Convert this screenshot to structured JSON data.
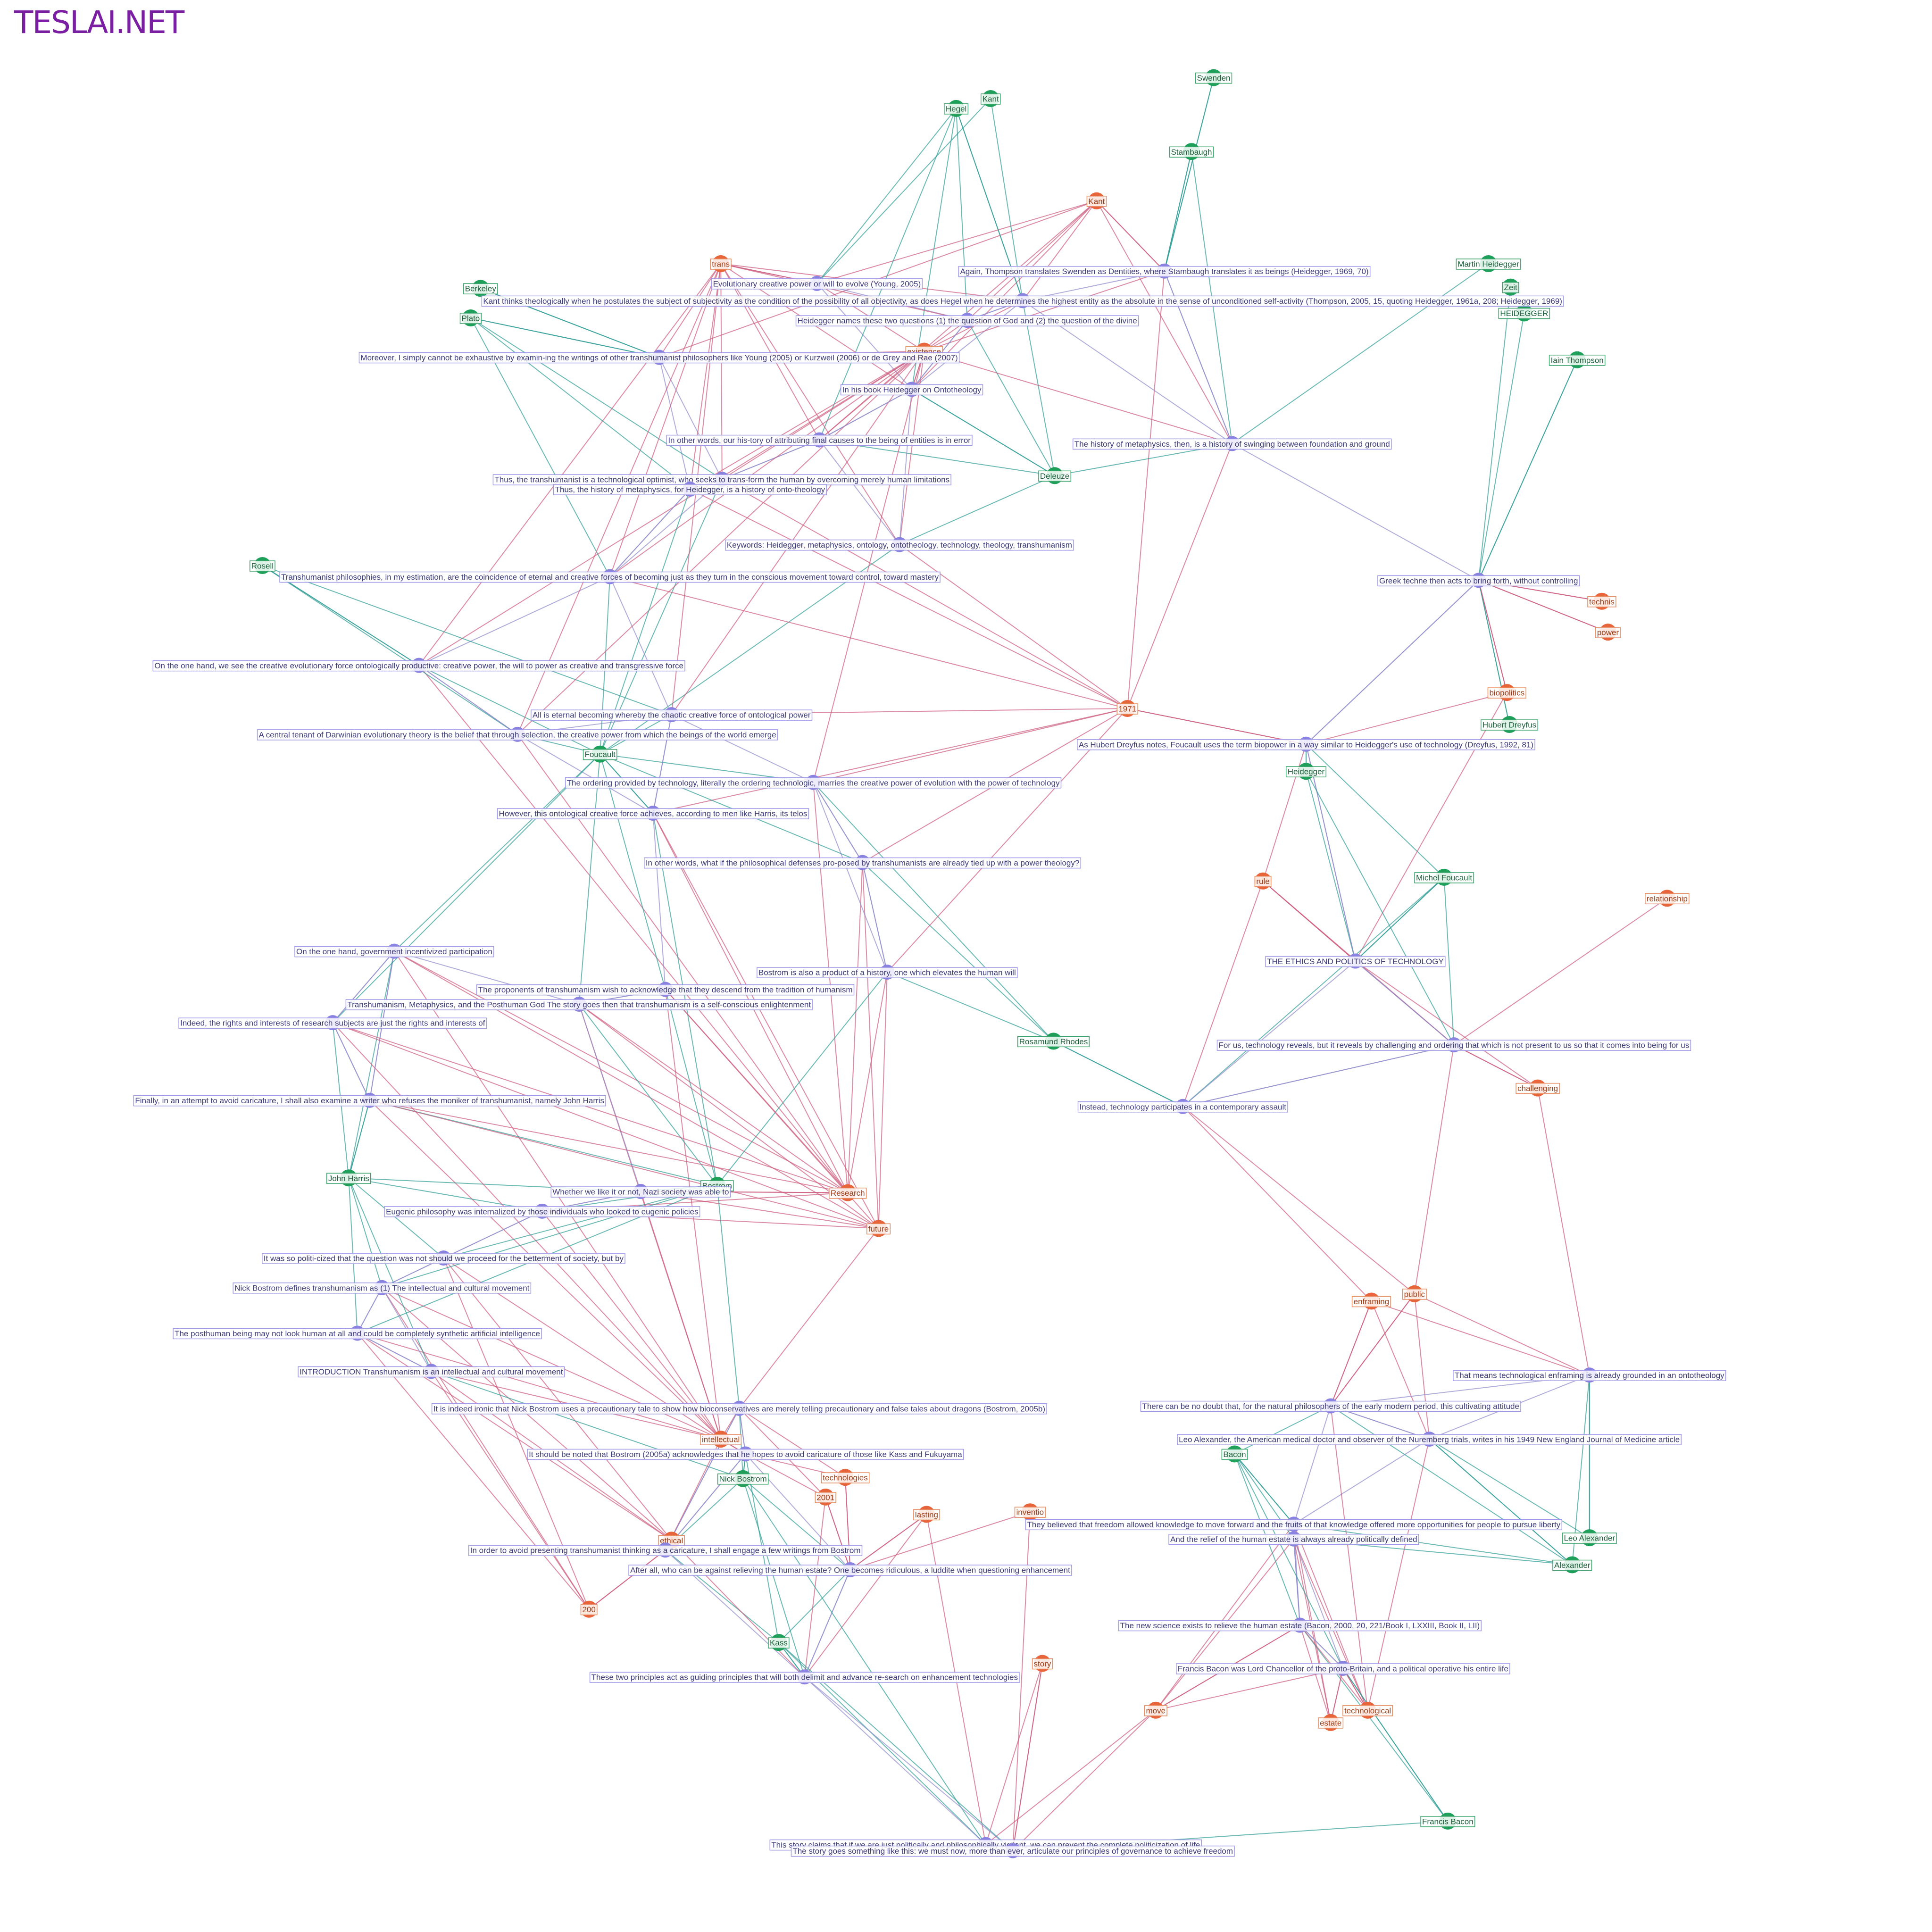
{
  "header": {
    "brand": "TESLAI.NET"
  },
  "nodes": [
    {
      "label": "Swenden",
      "kind": "person"
    },
    {
      "label": "Hegel",
      "kind": "person"
    },
    {
      "label": "Kant",
      "kind": "person"
    },
    {
      "label": "Stambaugh",
      "kind": "person"
    },
    {
      "label": "Berkeley",
      "kind": "person"
    },
    {
      "label": "Plato",
      "kind": "person"
    },
    {
      "label": "Martin Heidegger",
      "kind": "person"
    },
    {
      "label": "Zeit",
      "kind": "person"
    },
    {
      "label": "HEIDEGGER",
      "kind": "person"
    },
    {
      "label": "Iain Thompson",
      "kind": "person"
    },
    {
      "label": "Rosell",
      "kind": "person"
    },
    {
      "label": "Hubert Dreyfus",
      "kind": "person"
    },
    {
      "label": "Foucault",
      "kind": "person"
    },
    {
      "label": "Michel Foucault",
      "kind": "person"
    },
    {
      "label": "Rosamund Rhodes",
      "kind": "person"
    },
    {
      "label": "John Harris",
      "kind": "person"
    },
    {
      "label": "Bostrom",
      "kind": "person"
    },
    {
      "label": "Nick Bostrom",
      "kind": "person"
    },
    {
      "label": "Bacon",
      "kind": "person"
    },
    {
      "label": "Leo Alexander",
      "kind": "person"
    },
    {
      "label": "Alexander",
      "kind": "person"
    },
    {
      "label": "Kass",
      "kind": "person"
    },
    {
      "label": "Francis Bacon",
      "kind": "person"
    },
    {
      "label": "Heidegger",
      "kind": "person"
    },
    {
      "label": "Deleuze",
      "kind": "person"
    },
    {
      "label": "trans",
      "kind": "concept"
    },
    {
      "label": "Kant",
      "kind": "concept"
    },
    {
      "label": "existence",
      "kind": "concept"
    },
    {
      "label": "technis",
      "kind": "concept"
    },
    {
      "label": "power",
      "kind": "concept"
    },
    {
      "label": "1971",
      "kind": "concept"
    },
    {
      "label": "biopolitics",
      "kind": "concept"
    },
    {
      "label": "relationship",
      "kind": "concept"
    },
    {
      "label": "challenging",
      "kind": "concept"
    },
    {
      "label": "rule",
      "kind": "concept"
    },
    {
      "label": "public",
      "kind": "concept"
    },
    {
      "label": "enframing",
      "kind": "concept"
    },
    {
      "label": "intellectual",
      "kind": "concept"
    },
    {
      "label": "technologies",
      "kind": "concept"
    },
    {
      "label": "2001",
      "kind": "concept"
    },
    {
      "label": "lasting",
      "kind": "concept"
    },
    {
      "label": "inventio",
      "kind": "concept"
    },
    {
      "label": "story",
      "kind": "concept"
    },
    {
      "label": "move",
      "kind": "concept"
    },
    {
      "label": "estate",
      "kind": "concept"
    },
    {
      "label": "technological",
      "kind": "concept"
    },
    {
      "label": "ethical",
      "kind": "concept"
    },
    {
      "label": "200",
      "kind": "concept"
    },
    {
      "label": "Research",
      "kind": "concept"
    },
    {
      "label": "future",
      "kind": "concept"
    },
    {
      "label": "Kant thinks theologically when he postulates the subject of subjectivity as the condition of the possibility of all objectivity, as does Hegel when he determines the highest entity as the absolute in the sense of unconditioned self-activity (Thompson, 2005, 15, quoting Heidegger, 1961a, 208; Heidegger, 1969)",
      "kind": "statement"
    },
    {
      "label": "Moreover, I simply cannot be exhaustive by examin-ing the writings of other transhumanist philosophers like Young (2005) or Kurzweil (2006) or de Grey and Rae (2007)",
      "kind": "statement"
    },
    {
      "label": "Evolutionary creative power or will to evolve (Young, 2005)",
      "kind": "statement"
    },
    {
      "label": "Again, Thompson translates Swenden as Dentities, where Stambaugh translates it as beings (Heidegger, 1969, 70)",
      "kind": "statement"
    },
    {
      "label": "In other words, our his-tory of attributing final causes to the being of entities is in error",
      "kind": "statement"
    },
    {
      "label": "Thus, the transhumanist is a technological optimist, who seeks to trans-form the human by overcoming merely human limitations",
      "kind": "statement"
    },
    {
      "label": "Keywords: Heidegger, metaphysics, ontology, ontotheology, technology, theology, transhumanism",
      "kind": "statement"
    },
    {
      "label": "Transhumanist philosophies, in my estimation, are the coincidence of eternal and creative forces of becoming just as they turn in the conscious movement toward control, toward mastery",
      "kind": "statement"
    },
    {
      "label": "Greek techne then acts to bring forth, without controlling",
      "kind": "statement"
    },
    {
      "label": "On the one hand, we see the creative evolutionary force ontologically productive: creative power, the will to power as creative and transgressive force",
      "kind": "statement"
    },
    {
      "label": "All is eternal becoming whereby the chaotic creative force of ontological power",
      "kind": "statement"
    },
    {
      "label": "A central tenant of Darwinian evolutionary theory is the belief that through selection, the creative power from which the beings of the world emerge",
      "kind": "statement"
    },
    {
      "label": "The ordering provided by technology, literally the ordering technologic, marries the creative power of evolution with the power of technology",
      "kind": "statement"
    },
    {
      "label": "As Hubert Dreyfus notes, Foucault uses the term biopower in a way similar to Heidegger's use of technology (Dreyfus, 1992, 81)",
      "kind": "statement"
    },
    {
      "label": "However, this ontological creative force achieves, according to men like Harris, its telos",
      "kind": "statement"
    },
    {
      "label": "In other words, what if the philosophical defenses pro-posed by transhumanists are already tied up with a power theology?",
      "kind": "statement"
    },
    {
      "label": "On the one hand, government incentivized participation",
      "kind": "statement"
    },
    {
      "label": "Bostrom is also a product of a history, one which elevates the human will",
      "kind": "statement"
    },
    {
      "label": "THE ETHICS AND POLITICS OF TECHNOLOGY",
      "kind": "statement"
    },
    {
      "label": "The proponents of transhumanism wish to acknowledge that they descend from the tradition of humanism",
      "kind": "statement"
    },
    {
      "label": "Transhumanism, Metaphysics, and the Posthuman God The story goes then that transhumanism is a self-conscious enlightenment",
      "kind": "statement"
    },
    {
      "label": "For us, technology reveals, but it reveals by challenging and ordering that which is not present to us so that it comes into being for us",
      "kind": "statement"
    },
    {
      "label": "Finally, in an attempt to avoid caricature, I shall also examine a writer who refuses the moniker of transhumanist, namely John Harris",
      "kind": "statement"
    },
    {
      "label": "Instead, technology participates in a contemporary assault",
      "kind": "statement"
    },
    {
      "label": "Whether we like it or not, Nazi society was able to",
      "kind": "statement"
    },
    {
      "label": "Eugenic philosophy was internalized by those individuals who looked to eugenic policies",
      "kind": "statement"
    },
    {
      "label": "Indeed, the rights and interests of research subjects are just the rights and interests of",
      "kind": "statement"
    },
    {
      "label": "It was so politi-cized that the question was not should we proceed for the betterment of society, but by",
      "kind": "statement"
    },
    {
      "label": "Nick Bostrom defines transhumanism as (1) The intellectual and cultural movement",
      "kind": "statement"
    },
    {
      "label": "The posthuman being may not look human at all and could be completely synthetic artificial intelligence",
      "kind": "statement"
    },
    {
      "label": "INTRODUCTION Transhumanism is an intellectual and cultural movement",
      "kind": "statement"
    },
    {
      "label": "It is indeed ironic that Nick Bostrom uses a precautionary tale to show how bioconservatives are merely telling precautionary and false tales about dragons (Bostrom, 2005b)",
      "kind": "statement"
    },
    {
      "label": "It should be noted that Bostrom (2005a) acknowledges that he hopes to avoid caricature of those like Kass and Fukuyama",
      "kind": "statement"
    },
    {
      "label": "Leo Alexander, the American medical doctor and observer of the Nuremberg trials, writes in his 1949 New England Journal of Medicine article",
      "kind": "statement"
    },
    {
      "label": "That means technological enframing is already grounded in an ontotheology",
      "kind": "statement"
    },
    {
      "label": "There can be no doubt that, for the natural philosophers of the early modern period, this cultivating attitude",
      "kind": "statement"
    },
    {
      "label": "They believed that freedom allowed knowledge to move forward and the fruits of that knowledge offered more opportunities for people to pursue liberty",
      "kind": "statement"
    },
    {
      "label": "And the relief of the human estate is always already politically defined",
      "kind": "statement"
    },
    {
      "label": "In order to avoid presenting transhumanist thinking as a caricature, I shall engage a few writings from Bostrom",
      "kind": "statement"
    },
    {
      "label": "After all, who can be against relieving the human estate? One becomes ridiculous, a luddite when questioning enhancement",
      "kind": "statement"
    },
    {
      "label": "The new science exists to relieve the human estate (Bacon, 2000, 20, 221/Book I, LXXIII, Book II, LII)",
      "kind": "statement"
    },
    {
      "label": "Francis Bacon was Lord Chancellor of the proto-Britain, and a political operative his entire life",
      "kind": "statement"
    },
    {
      "label": "These two principles act as guiding principles that will both delimit and advance re-search on enhancement technologies",
      "kind": "statement"
    },
    {
      "label": "This story claims that if we are just politically and philosophically vigilant, we can prevent the complete politicization of life",
      "kind": "statement"
    },
    {
      "label": "The story goes something like this: we must now, more than ever, articulate our principles of governance to achieve freedom",
      "kind": "statement"
    },
    {
      "label": "In his book Heidegger on Ontotheology",
      "kind": "statement"
    },
    {
      "label": "Heidegger names these two questions (1) the question of God and (2) the question of the divine",
      "kind": "statement"
    },
    {
      "label": "The history of metaphysics, then, is a history of swinging between foundation and ground",
      "kind": "statement"
    },
    {
      "label": "Thus, the history of metaphysics, for Heidegger, is a history of onto-theology",
      "kind": "statement"
    }
  ]
}
